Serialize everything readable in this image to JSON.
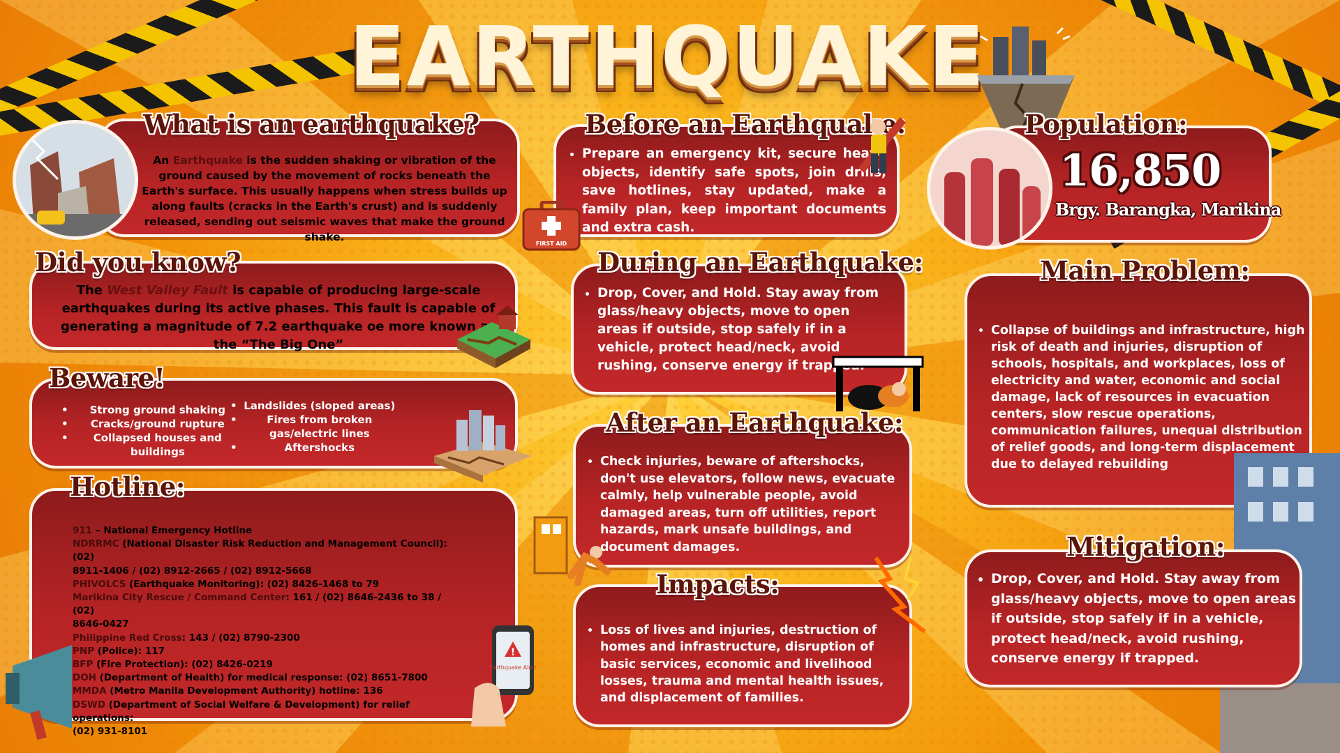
{
  "title": "EARTHQUAKE",
  "what_is": {
    "heading": "What is an earthquake?",
    "lead": "An ",
    "highlight": "Earthquake",
    "text": " is the sudden shaking or vibration of the ground caused by the movement of rocks beneath the Earth's surface. This usually happens when stress builds up along faults (cracks in the Earth's crust) and is suddenly released, sending out seismic waves that make the ground shake."
  },
  "did_you_know": {
    "heading": "Did you know?",
    "lead": "The ",
    "highlight": "West Valley Fault",
    "text": " is capable of producing large-scale earthquakes during its active phases. This fault is capable of generating a magnitude of 7.2 earthquake oe more known as the “The Big One”"
  },
  "beware": {
    "heading": "Beware!",
    "col1": [
      "Strong ground shaking",
      "Cracks/ground rupture",
      "Collapsed houses and buildings"
    ],
    "col2": [
      "Landslides (sloped areas)",
      "Fires from broken gas/electric lines",
      "Aftershocks"
    ]
  },
  "hotline": {
    "heading": "Hotline:",
    "lines": [
      {
        "h": "911",
        "t": " – National Emergency Hotline"
      },
      {
        "h": "NDRRMC",
        "t": " (National Disaster Risk Reduction and Management Council): (02)"
      },
      {
        "h": "",
        "t": "8911-1406 / (02) 8912-2665 / (02) 8912-5668"
      },
      {
        "h": "PHIVOLCS",
        "t": " (Earthquake Monitoring): (02) 8426-1468 to 79"
      },
      {
        "h": "Marikina City Rescue / Command Center",
        "t": ": 161 / (02) 8646-2436 to 38 / (02)"
      },
      {
        "h": "",
        "t": "8646-0427"
      },
      {
        "h": "Philippine Red Cross",
        "t": ": 143 / (02) 8790-2300"
      },
      {
        "h": "PNP",
        "t": " (Police): 117"
      },
      {
        "h": "BFP",
        "t": " (Fire Protection): (02) 8426-0219"
      },
      {
        "h": "DOH",
        "t": " (Department of Health) for medical response: (02) 8651-7800"
      },
      {
        "h": "MMDA",
        "t": " (Metro Manila Development Authority) hotline: 136"
      },
      {
        "h": "DSWD",
        "t": " (Department of Social Welfare & Development) for relief operations:"
      },
      {
        "h": "",
        "t": "(02) 931-8101"
      }
    ]
  },
  "before": {
    "heading": "Before an Earthquake:",
    "text": "Prepare an emergency kit, secure heavy objects, identify safe spots, join drills, save hotlines, stay updated, make a family plan, keep important documents and extra cash."
  },
  "during": {
    "heading": "During an Earthquake:",
    "text": "Drop, Cover, and Hold. Stay away from glass/heavy objects, move to open areas if outside, stop safely if in a vehicle, protect head/neck, avoid rushing, conserve energy if trapped."
  },
  "after": {
    "heading": "After an Earthquake:",
    "text": "Check injuries, beware of aftershocks, don't use elevators, follow news, evacuate calmly, help vulnerable people, avoid damaged areas, turn off utilities, report hazards, mark unsafe buildings, and document damages."
  },
  "impacts": {
    "heading": "Impacts:",
    "text": "Loss of lives and injuries, destruction of homes and infrastructure, disruption of basic services, economic and livelihood losses, trauma and mental health issues, and displacement of families."
  },
  "population": {
    "heading": "Population:",
    "value": "16,850",
    "place": "Brgy. Barangka, Marikina"
  },
  "main_problem": {
    "heading": "Main Problem:",
    "text": "Collapse of buildings and infrastructure, high risk of death and injuries, disruption of schools, hospitals, and workplaces, loss of electricity and water, economic and social damage, lack of resources in evacuation centers, slow rescue operations, communication failures, unequal distribution of relief goods, and long-term displacement due to delayed rebuilding"
  },
  "mitigation": {
    "heading": "Mitigation:",
    "text": "Drop, Cover, and Hold. Stay away from glass/heavy objects, move to open areas if outside, stop safely if in a vehicle, protect head/neck, avoid rushing, conserve energy if trapped."
  },
  "illustrations": {
    "first_aid": "FIRST AID",
    "phone_alert": "Earthquake Alert"
  },
  "colors": {
    "panel": "#b72425",
    "heading": "#5b1508",
    "background": "#f7a613",
    "tape": "#f5c400"
  }
}
